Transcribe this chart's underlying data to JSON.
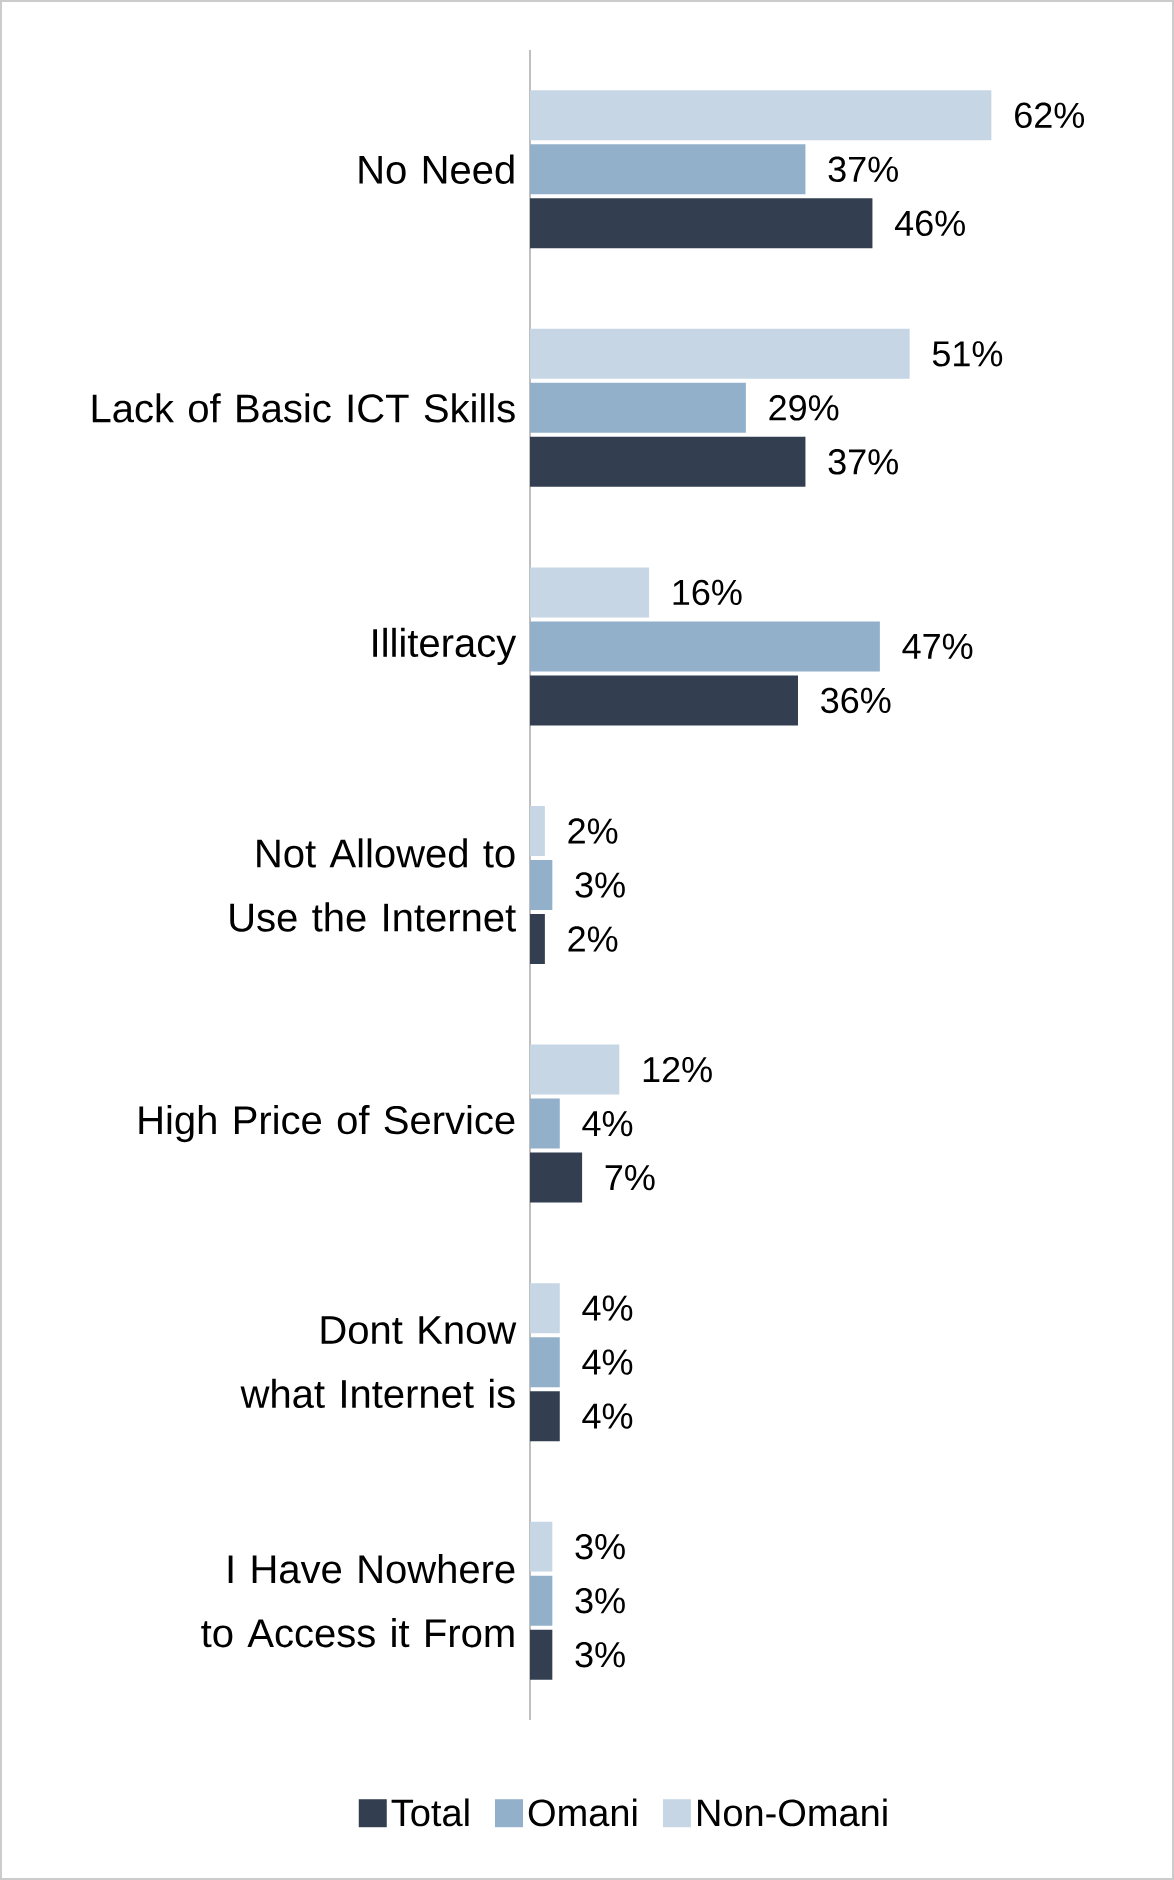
{
  "chart_data": {
    "type": "bar",
    "orientation": "horizontal",
    "categories": [
      "No Need",
      "Lack of  Basic ICT Skills",
      "Illiteracy",
      "Not Allowed to Use the Internet",
      "High Price of Service",
      "Dont Know what Internet is",
      "I Have Nowhere to Access it From"
    ],
    "series": [
      {
        "name": "Total",
        "color": "#333f50",
        "values": [
          46,
          37,
          36,
          2,
          7,
          4,
          3
        ],
        "value_labels": [
          "46%",
          "37%",
          "36%",
          "2%",
          "7%",
          "4%",
          "3%"
        ]
      },
      {
        "name": "Omani",
        "color": "#93b0ca",
        "values": [
          37,
          29,
          47,
          3,
          4,
          4,
          3
        ],
        "value_labels": [
          "37%",
          "29%",
          "47%",
          "3%",
          "4%",
          "4%",
          "3%"
        ]
      },
      {
        "name": "Non-Omani",
        "color": "#c6d6e5",
        "values": [
          62,
          51,
          16,
          2,
          12,
          4,
          3
        ],
        "value_labels": [
          "62%",
          "51%",
          "16%",
          "2%",
          "12%",
          "4%",
          "3%"
        ]
      }
    ],
    "legend": "bottom"
  }
}
